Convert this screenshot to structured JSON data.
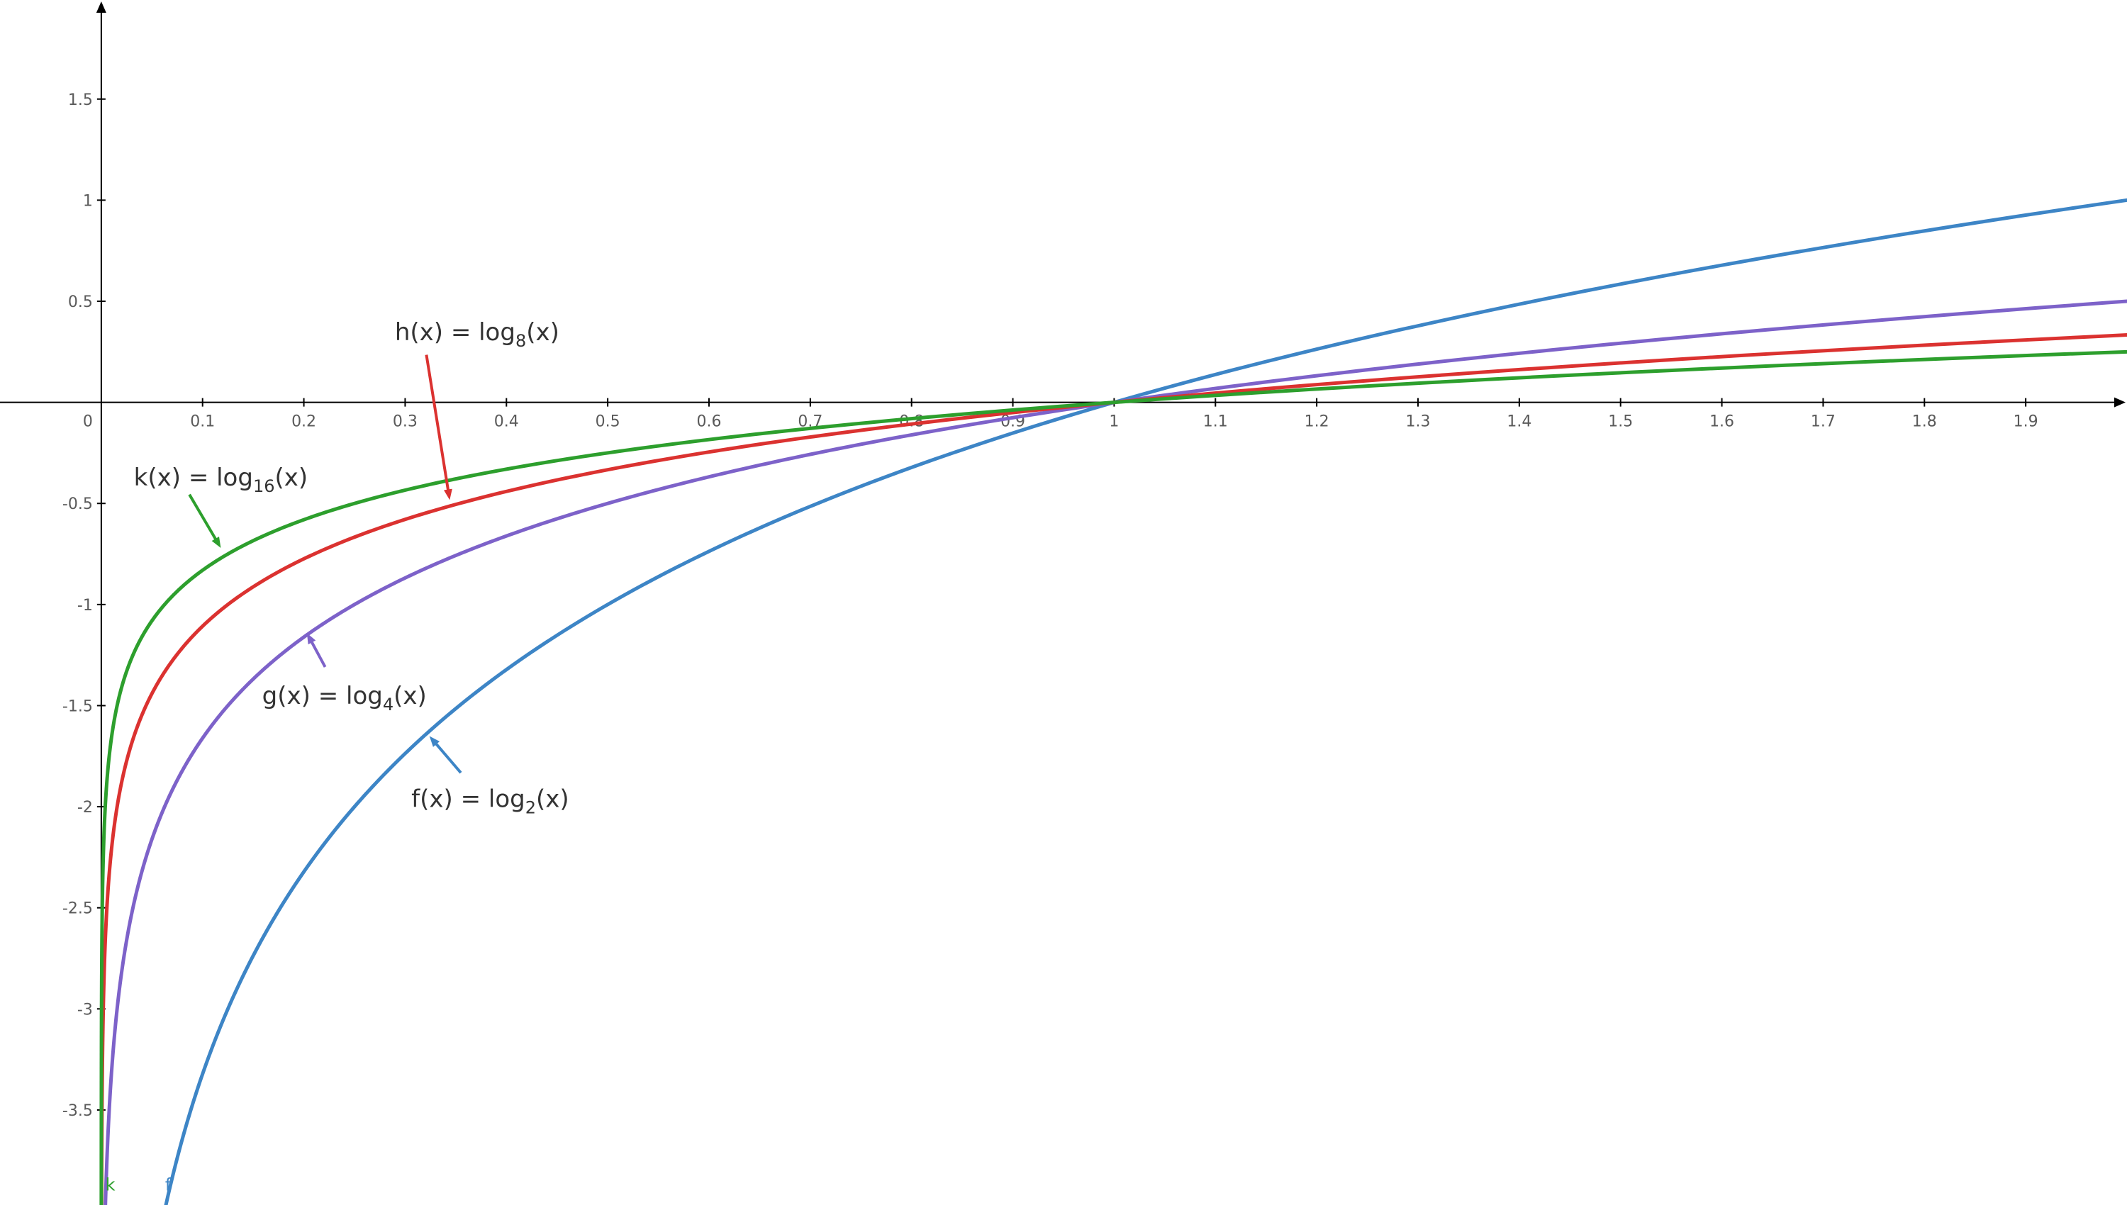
{
  "chart_data": {
    "type": "line",
    "title": "",
    "xlabel": "",
    "ylabel": "",
    "xlim": [
      -0.1,
      2.0
    ],
    "ylim": [
      -3.97,
      1.99
    ],
    "grid": false,
    "legend_position": "none",
    "axis_color": "#000000",
    "tick_label_color": "#5a5a5a",
    "annotation_text_color": "#333333",
    "origin_label": "0",
    "x_ticks": {
      "values": [
        0.1,
        0.2,
        0.3,
        0.4,
        0.5,
        0.6,
        0.7,
        0.8,
        0.9,
        1,
        1.1,
        1.2,
        1.3,
        1.4,
        1.5,
        1.6,
        1.7,
        1.8,
        1.9
      ],
      "labels": [
        "0.1",
        "0.2",
        "0.3",
        "0.4",
        "0.5",
        "0.6",
        "0.7",
        "0.8",
        "0.9",
        "1",
        "1.1",
        "1.2",
        "1.3",
        "1.4",
        "1.5",
        "1.6",
        "1.7",
        "1.8",
        "1.9"
      ]
    },
    "y_ticks": {
      "values": [
        1.5,
        1,
        0.5,
        -0.5,
        -1,
        -1.5,
        -2,
        -2.5,
        -3,
        -3.5
      ],
      "labels": [
        "1.5",
        "1",
        "0.5",
        "-0.5",
        "-1",
        "-1.5",
        "-2",
        "-2.5",
        "-3",
        "-3.5"
      ]
    },
    "series": [
      {
        "name": "f",
        "expression": "f(x) = log_2(x)",
        "base": 2,
        "color": "#3d85c6"
      },
      {
        "name": "g",
        "expression": "g(x) = log_4(x)",
        "base": 4,
        "color": "#7d62c9"
      },
      {
        "name": "h",
        "expression": "h(x) = log_8(x)",
        "base": 8,
        "color": "#db3230"
      },
      {
        "name": "k",
        "expression": "k(x) = log_16(x)",
        "base": 16,
        "color": "#2d9f2d"
      }
    ],
    "annotations": [
      {
        "series": "h",
        "prefix": "h(x) = log",
        "sub": "8",
        "suffix": "(x)",
        "label_x": 0.371,
        "label_y": 0.349,
        "arrow": [
          0.321,
          0.235,
          0.344,
          -0.483
        ]
      },
      {
        "series": "k",
        "prefix": "k(x) = log",
        "sub": "16",
        "suffix": "(x)",
        "label_x": 0.118,
        "label_y": -0.369,
        "arrow": [
          0.087,
          -0.456,
          0.118,
          -0.72
        ]
      },
      {
        "series": "g",
        "prefix": "g(x) = log",
        "sub": "4",
        "suffix": "(x)",
        "label_x": 0.24,
        "label_y": -1.45,
        "arrow": [
          0.221,
          -1.309,
          0.203,
          -1.141
        ]
      },
      {
        "series": "f",
        "prefix": "f(x) = log",
        "sub": "2",
        "suffix": "(x)",
        "label_x": 0.384,
        "label_y": -1.96,
        "arrow": [
          0.355,
          -1.832,
          0.324,
          -1.651
        ]
      }
    ],
    "curve_end_labels": [
      {
        "text": "k",
        "x": 0.004,
        "y": -3.87,
        "color": "#2d9f2d"
      },
      {
        "text": "f",
        "x": 0.063,
        "y": -3.87,
        "color": "#3d85c6"
      }
    ]
  }
}
